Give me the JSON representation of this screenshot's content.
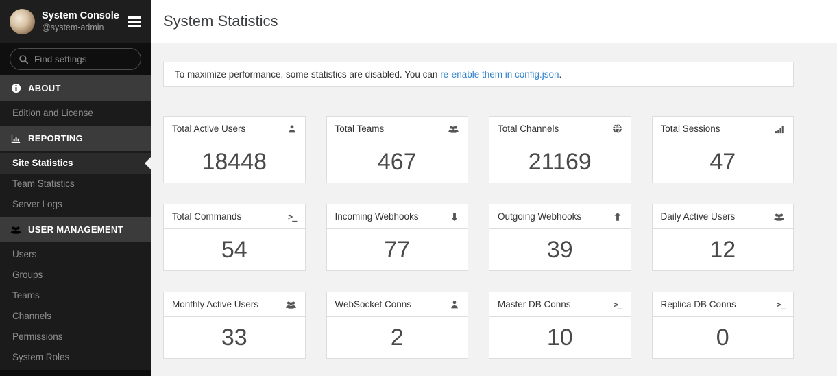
{
  "sidebar": {
    "title": "System Console",
    "subtitle": "@system-admin",
    "search_placeholder": "Find settings",
    "sections": [
      {
        "label": "ABOUT",
        "icon": "info-circle-icon",
        "items": [
          {
            "label": "Edition and License",
            "active": false
          }
        ]
      },
      {
        "label": "REPORTING",
        "icon": "bar-chart-icon",
        "items": [
          {
            "label": "Site Statistics",
            "active": true
          },
          {
            "label": "Team Statistics",
            "active": false
          },
          {
            "label": "Server Logs",
            "active": false
          }
        ]
      },
      {
        "label": "USER MANAGEMENT",
        "icon": "users-icon",
        "items": [
          {
            "label": "Users",
            "active": false
          },
          {
            "label": "Groups",
            "active": false
          },
          {
            "label": "Teams",
            "active": false
          },
          {
            "label": "Channels",
            "active": false
          },
          {
            "label": "Permissions",
            "active": false
          },
          {
            "label": "System Roles",
            "active": false
          }
        ]
      }
    ]
  },
  "header": {
    "title": "System Statistics"
  },
  "banner": {
    "text_before_link": "To maximize performance, some statistics are disabled. You can ",
    "link_text": "re-enable them in config.json",
    "text_after_link": "."
  },
  "stats": [
    {
      "label": "Total Active Users",
      "icon": "user-icon",
      "value": "18448"
    },
    {
      "label": "Total Teams",
      "icon": "users-icon",
      "value": "467"
    },
    {
      "label": "Total Channels",
      "icon": "globe-icon",
      "value": "21169"
    },
    {
      "label": "Total Sessions",
      "icon": "signal-icon",
      "value": "47"
    },
    {
      "label": "Total Commands",
      "icon": "terminal-icon",
      "value": "54"
    },
    {
      "label": "Incoming Webhooks",
      "icon": "arrow-down-icon",
      "value": "77"
    },
    {
      "label": "Outgoing Webhooks",
      "icon": "arrow-up-icon",
      "value": "39"
    },
    {
      "label": "Daily Active Users",
      "icon": "users-icon",
      "value": "12"
    },
    {
      "label": "Monthly Active Users",
      "icon": "users-icon",
      "value": "33"
    },
    {
      "label": "WebSocket Conns",
      "icon": "user-icon",
      "value": "2"
    },
    {
      "label": "Master DB Conns",
      "icon": "terminal-icon",
      "value": "10"
    },
    {
      "label": "Replica DB Conns",
      "icon": "terminal-icon",
      "value": "0"
    }
  ],
  "colors": {
    "sidebar_bg": "#1b1b1b",
    "section_header_bg": "#3b3b3b",
    "active_item_bg": "#2b2b2b",
    "content_bg": "#f2f2f2",
    "link": "#2f81cd",
    "card_border": "#dddddd"
  }
}
